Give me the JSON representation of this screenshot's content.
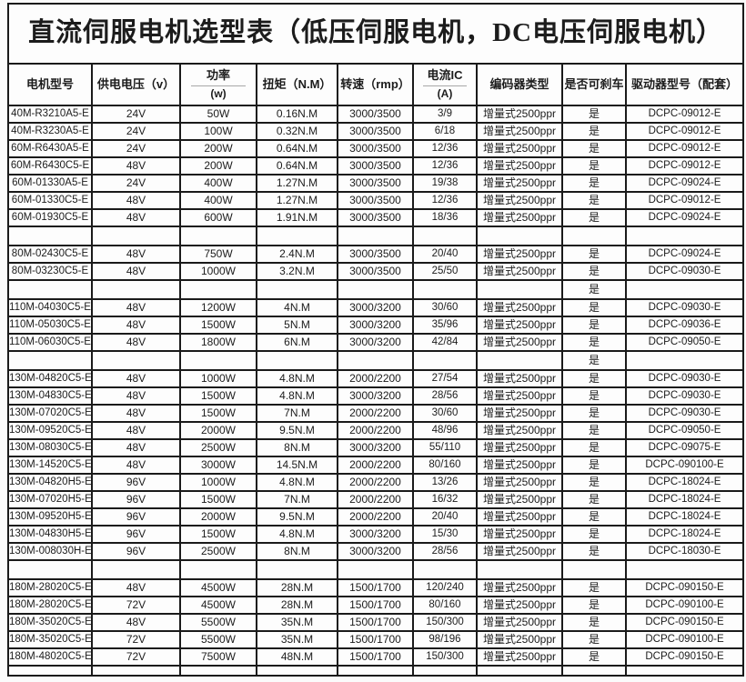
{
  "title": "直流伺服电机选型表（低压伺服电机，DC电压伺服电机）",
  "colors": {
    "border": "#1a1a1a",
    "background": "#fdfdfd",
    "text": "#1c1c1c"
  },
  "table": {
    "columns": [
      {
        "key": "model",
        "label": "电机型号",
        "sub": null
      },
      {
        "key": "voltage",
        "label": "供电电压（v）",
        "sub": null
      },
      {
        "key": "power",
        "label": "功率",
        "sub": "(w)"
      },
      {
        "key": "torque",
        "label": "扭矩（N.M）",
        "sub": null
      },
      {
        "key": "speed",
        "label": "转速（rmp）",
        "sub": null
      },
      {
        "key": "current",
        "label": "电流IC",
        "sub": "(A)"
      },
      {
        "key": "encoder",
        "label": "编码器类型",
        "sub": null
      },
      {
        "key": "brake",
        "label": "是否可刹车",
        "sub": null
      },
      {
        "key": "driver",
        "label": "驱动器型号（配套）",
        "sub": null
      }
    ],
    "rows": [
      {
        "type": "data",
        "cells": [
          "40M-R3210A5-E",
          "24V",
          "50W",
          "0.16N.M",
          "3000/3500",
          "3/9",
          "增量式2500ppr",
          "是",
          "DCPC-09012-E"
        ]
      },
      {
        "type": "data",
        "cells": [
          "40M-R3230A5-E",
          "24V",
          "100W",
          "0.32N.M",
          "3000/3500",
          "6/18",
          "增量式2500ppr",
          "是",
          "DCPC-09012-E"
        ]
      },
      {
        "type": "data",
        "cells": [
          "60M-R6430A5-E",
          "24V",
          "200W",
          "0.64N.M",
          "3000/3500",
          "12/36",
          "增量式2500ppr",
          "是",
          "DCPC-09012-E"
        ]
      },
      {
        "type": "data",
        "cells": [
          "60M-R6430C5-E",
          "48V",
          "200W",
          "0.64N.M",
          "3000/3500",
          "12/36",
          "增量式2500ppr",
          "是",
          "DCPC-09012-E"
        ]
      },
      {
        "type": "data",
        "cells": [
          "60M-01330A5-E",
          "24V",
          "400W",
          "1.27N.M",
          "3000/3500",
          "19/38",
          "增量式2500ppr",
          "是",
          "DCPC-09024-E"
        ]
      },
      {
        "type": "data",
        "cells": [
          "60M-01330C5-E",
          "48V",
          "400W",
          "1.27N.M",
          "3000/3500",
          "12/36",
          "增量式2500ppr",
          "是",
          "DCPC-09012-E"
        ]
      },
      {
        "type": "data",
        "cells": [
          "60M-01930C5-E",
          "48V",
          "600W",
          "1.91N.M",
          "3000/3500",
          "18/36",
          "增量式2500ppr",
          "是",
          "DCPC-09024-E"
        ]
      },
      {
        "type": "separator",
        "cells": [
          "",
          "",
          "",
          "",
          "",
          "",
          "",
          "",
          ""
        ]
      },
      {
        "type": "data",
        "cells": [
          "80M-02430C5-E",
          "48V",
          "750W",
          "2.4N.M",
          "3000/3500",
          "20/40",
          "增量式2500ppr",
          "是",
          "DCPC-09024-E"
        ]
      },
      {
        "type": "data",
        "cells": [
          "80M-03230C5-E",
          "48V",
          "1000W",
          "3.2N.M",
          "3000/3500",
          "25/50",
          "增量式2500ppr",
          "是",
          "DCPC-09030-E"
        ]
      },
      {
        "type": "separator",
        "cells": [
          "",
          "",
          "",
          "",
          "",
          "",
          "",
          "是",
          ""
        ]
      },
      {
        "type": "data",
        "cells": [
          "110M-04030C5-E",
          "48V",
          "1200W",
          "4N.M",
          "3000/3200",
          "30/60",
          "增量式2500ppr",
          "是",
          "DCPC-09030-E"
        ]
      },
      {
        "type": "data",
        "cells": [
          "110M-05030C5-E",
          "48V",
          "1500W",
          "5N.M",
          "3000/3200",
          "35/96",
          "增量式2500ppr",
          "是",
          "DCPC-09036-E"
        ]
      },
      {
        "type": "data",
        "cells": [
          "110M-06030C5-E",
          "48V",
          "1800W",
          "6N.M",
          "3000/3200",
          "42/84",
          "增量式2500ppr",
          "是",
          "DCPC-09050-E"
        ]
      },
      {
        "type": "separator",
        "cells": [
          "",
          "",
          "",
          "",
          "",
          "",
          "",
          "是",
          ""
        ]
      },
      {
        "type": "data",
        "cells": [
          "130M-04820C5-E",
          "48V",
          "1000W",
          "4.8N.M",
          "2000/2200",
          "27/54",
          "增量式2500ppr",
          "是",
          "DCPC-09030-E"
        ]
      },
      {
        "type": "data",
        "cells": [
          "130M-04830C5-E",
          "48V",
          "1500W",
          "4.8N.M",
          "3000/3200",
          "28/56",
          "增量式2500ppr",
          "是",
          "DCPC-09030-E"
        ]
      },
      {
        "type": "data",
        "cells": [
          "130M-07020C5-E",
          "48V",
          "1500W",
          "7N.M",
          "2000/2200",
          "30/60",
          "增量式2500ppr",
          "是",
          "DCPC-09030-E"
        ]
      },
      {
        "type": "data",
        "cells": [
          "130M-09520C5-E",
          "48V",
          "2000W",
          "9.5N.M",
          "2000/2200",
          "48/96",
          "增量式2500ppr",
          "是",
          "DCPC-09050-E"
        ]
      },
      {
        "type": "data",
        "cells": [
          "130M-08030C5-E",
          "48V",
          "2500W",
          "8N.M",
          "3000/3200",
          "55/110",
          "增量式2500ppr",
          "是",
          "DCPC-09075-E"
        ]
      },
      {
        "type": "data",
        "cells": [
          "130M-14520C5-E",
          "48V",
          "3000W",
          "14.5N.M",
          "2000/2200",
          "80/160",
          "增量式2500ppr",
          "是",
          "DCPC-090100-E"
        ]
      },
      {
        "type": "data",
        "cells": [
          "130M-04820H5-E",
          "96V",
          "1000W",
          "4.8N.M",
          "2000/2200",
          "13/26",
          "增量式2500ppr",
          "是",
          "DCPC-18024-E"
        ]
      },
      {
        "type": "data",
        "cells": [
          "130M-07020H5-E",
          "96V",
          "1500W",
          "7N.M",
          "2000/2200",
          "16/32",
          "增量式2500ppr",
          "是",
          "DCPC-18024-E"
        ]
      },
      {
        "type": "data",
        "cells": [
          "130M-09520H5-E",
          "96V",
          "2000W",
          "9.5N.M",
          "2000/2200",
          "20/40",
          "增量式2500ppr",
          "是",
          "DCPC-18024-E"
        ]
      },
      {
        "type": "data",
        "cells": [
          "130M-04830H5-E",
          "96V",
          "1500W",
          "4.8N.M",
          "3000/3200",
          "15/30",
          "增量式2500ppr",
          "是",
          "DCPC-18024-E"
        ]
      },
      {
        "type": "data",
        "cells": [
          "130M-008030H-E",
          "96V",
          "2500W",
          "8N.M",
          "3000/3200",
          "28/56",
          "增量式2500ppr",
          "是",
          "DCPC-18030-E"
        ]
      },
      {
        "type": "separator",
        "cells": [
          "",
          "",
          "",
          "",
          "",
          "",
          "",
          "",
          ""
        ]
      },
      {
        "type": "data",
        "cells": [
          "180M-28020C5-E",
          "48V",
          "4500W",
          "28N.M",
          "1500/1700",
          "120/240",
          "增量式2500ppr",
          "是",
          "DCPC-090150-E"
        ]
      },
      {
        "type": "data",
        "cells": [
          "180M-28020C5-E",
          "72V",
          "4500W",
          "28N.M",
          "1500/1700",
          "80/160",
          "增量式2500ppr",
          "是",
          "DCPC-090100-E"
        ]
      },
      {
        "type": "data",
        "cells": [
          "180M-35020C5-E",
          "48V",
          "5500W",
          "35N.M",
          "1500/1700",
          "150/300",
          "增量式2500ppr",
          "是",
          "DCPC-090150-E"
        ]
      },
      {
        "type": "data",
        "cells": [
          "180M-35020C5-E",
          "72V",
          "5500W",
          "35N.M",
          "1500/1700",
          "98/196",
          "增量式2500ppr",
          "是",
          "DCPC-090100-E"
        ]
      },
      {
        "type": "data",
        "cells": [
          "180M-48020C5-E",
          "72V",
          "7500W",
          "48N.M",
          "1500/1700",
          "150/300",
          "增量式2500ppr",
          "是",
          "DCPC-090150-E"
        ]
      },
      {
        "type": "separator",
        "short": true,
        "cells": [
          "",
          "",
          "",
          "",
          "",
          "",
          "",
          "",
          ""
        ]
      }
    ]
  }
}
